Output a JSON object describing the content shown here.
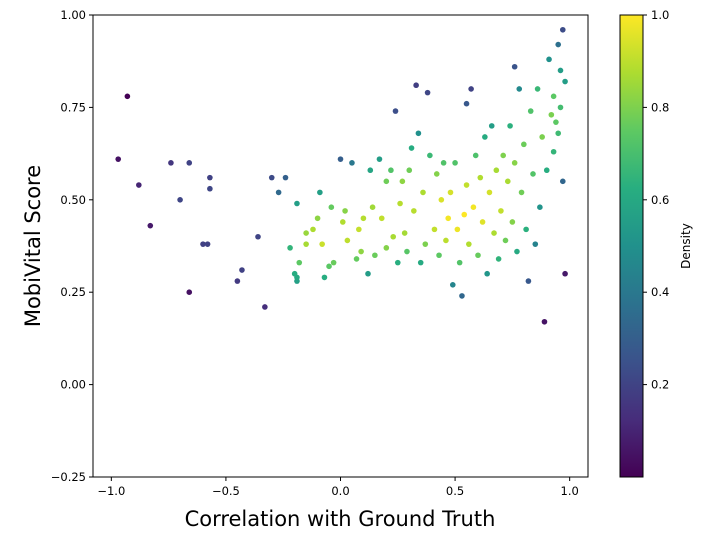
{
  "chart_data": {
    "type": "scatter",
    "title": "",
    "xlabel": "Correlation with Ground Truth",
    "ylabel": "MobiVital Score",
    "xlim": [
      -1.08,
      1.08
    ],
    "ylim": [
      -0.25,
      1.0
    ],
    "xticks": [
      -1.0,
      -0.5,
      0.0,
      0.5,
      1.0
    ],
    "xtick_labels": [
      "−1.0",
      "−0.5",
      "0.0",
      "0.5",
      "1.0"
    ],
    "yticks": [
      -0.25,
      0.0,
      0.25,
      0.5,
      0.75,
      1.0
    ],
    "ytick_labels": [
      "−0.25",
      "0.00",
      "0.25",
      "0.50",
      "0.75",
      "1.00"
    ],
    "grid": false,
    "colormap": "viridis",
    "colorbar": {
      "label": "Density",
      "range": [
        0.0,
        1.0
      ],
      "ticks": [
        0.2,
        0.4,
        0.6,
        0.8,
        1.0
      ],
      "tick_labels": [
        "0.2",
        "0.4",
        "0.6",
        "0.8",
        "1.0"
      ]
    },
    "points": [
      [
        -0.97,
        0.61
      ],
      [
        -0.93,
        0.78
      ],
      [
        -0.88,
        0.54
      ],
      [
        -0.83,
        0.43
      ],
      [
        -0.74,
        0.6
      ],
      [
        -0.7,
        0.5
      ],
      [
        -0.66,
        0.6
      ],
      [
        -0.66,
        0.25
      ],
      [
        -0.6,
        0.38
      ],
      [
        -0.58,
        0.38
      ],
      [
        -0.57,
        0.56
      ],
      [
        -0.57,
        0.53
      ],
      [
        -0.45,
        0.28
      ],
      [
        -0.43,
        0.31
      ],
      [
        -0.36,
        0.4
      ],
      [
        -0.33,
        0.21
      ],
      [
        -0.3,
        0.56
      ],
      [
        -0.27,
        0.52
      ],
      [
        -0.24,
        0.56
      ],
      [
        -0.22,
        0.37
      ],
      [
        -0.2,
        0.3
      ],
      [
        -0.19,
        0.29
      ],
      [
        -0.19,
        0.28
      ],
      [
        -0.18,
        0.33
      ],
      [
        -0.15,
        0.38
      ],
      [
        -0.19,
        0.49
      ],
      [
        -0.15,
        0.41
      ],
      [
        -0.12,
        0.42
      ],
      [
        -0.1,
        0.45
      ],
      [
        -0.09,
        0.52
      ],
      [
        -0.08,
        0.38
      ],
      [
        -0.07,
        0.29
      ],
      [
        -0.05,
        0.32
      ],
      [
        -0.04,
        0.48
      ],
      [
        -0.03,
        0.33
      ],
      [
        0.0,
        0.61
      ],
      [
        0.01,
        0.44
      ],
      [
        0.02,
        0.47
      ],
      [
        0.03,
        0.39
      ],
      [
        0.05,
        0.6
      ],
      [
        0.07,
        0.34
      ],
      [
        0.08,
        0.42
      ],
      [
        0.09,
        0.36
      ],
      [
        0.1,
        0.45
      ],
      [
        0.12,
        0.3
      ],
      [
        0.13,
        0.58
      ],
      [
        0.14,
        0.48
      ],
      [
        0.15,
        0.35
      ],
      [
        0.17,
        0.61
      ],
      [
        0.18,
        0.45
      ],
      [
        0.2,
        0.55
      ],
      [
        0.2,
        0.37
      ],
      [
        0.22,
        0.58
      ],
      [
        0.23,
        0.4
      ],
      [
        0.24,
        0.74
      ],
      [
        0.25,
        0.33
      ],
      [
        0.26,
        0.49
      ],
      [
        0.27,
        0.55
      ],
      [
        0.28,
        0.41
      ],
      [
        0.29,
        0.36
      ],
      [
        0.3,
        0.58
      ],
      [
        0.31,
        0.64
      ],
      [
        0.32,
        0.47
      ],
      [
        0.33,
        0.81
      ],
      [
        0.34,
        0.68
      ],
      [
        0.35,
        0.33
      ],
      [
        0.36,
        0.52
      ],
      [
        0.37,
        0.38
      ],
      [
        0.38,
        0.79
      ],
      [
        0.39,
        0.62
      ],
      [
        0.41,
        0.42
      ],
      [
        0.42,
        0.57
      ],
      [
        0.43,
        0.35
      ],
      [
        0.44,
        0.5
      ],
      [
        0.45,
        0.6
      ],
      [
        0.46,
        0.39
      ],
      [
        0.47,
        0.45
      ],
      [
        0.48,
        0.52
      ],
      [
        0.49,
        0.27
      ],
      [
        0.5,
        0.6
      ],
      [
        0.51,
        0.42
      ],
      [
        0.52,
        0.33
      ],
      [
        0.53,
        0.24
      ],
      [
        0.54,
        0.46
      ],
      [
        0.55,
        0.54
      ],
      [
        0.55,
        0.76
      ],
      [
        0.56,
        0.38
      ],
      [
        0.57,
        0.8
      ],
      [
        0.58,
        0.48
      ],
      [
        0.59,
        0.62
      ],
      [
        0.6,
        0.35
      ],
      [
        0.61,
        0.56
      ],
      [
        0.62,
        0.44
      ],
      [
        0.63,
        0.67
      ],
      [
        0.64,
        0.3
      ],
      [
        0.65,
        0.52
      ],
      [
        0.66,
        0.7
      ],
      [
        0.67,
        0.41
      ],
      [
        0.68,
        0.58
      ],
      [
        0.69,
        0.34
      ],
      [
        0.7,
        0.47
      ],
      [
        0.71,
        0.62
      ],
      [
        0.72,
        0.39
      ],
      [
        0.73,
        0.55
      ],
      [
        0.74,
        0.7
      ],
      [
        0.75,
        0.44
      ],
      [
        0.76,
        0.86
      ],
      [
        0.76,
        0.6
      ],
      [
        0.77,
        0.36
      ],
      [
        0.78,
        0.8
      ],
      [
        0.79,
        0.52
      ],
      [
        0.8,
        0.65
      ],
      [
        0.81,
        0.42
      ],
      [
        0.82,
        0.28
      ],
      [
        0.83,
        0.74
      ],
      [
        0.84,
        0.57
      ],
      [
        0.85,
        0.38
      ],
      [
        0.86,
        0.8
      ],
      [
        0.87,
        0.48
      ],
      [
        0.88,
        0.67
      ],
      [
        0.89,
        0.17
      ],
      [
        0.9,
        0.58
      ],
      [
        0.91,
        0.88
      ],
      [
        0.92,
        0.73
      ],
      [
        0.93,
        0.63
      ],
      [
        0.93,
        0.78
      ],
      [
        0.94,
        0.71
      ],
      [
        0.95,
        0.92
      ],
      [
        0.95,
        0.68
      ],
      [
        0.96,
        0.85
      ],
      [
        0.96,
        0.75
      ],
      [
        0.97,
        0.96
      ],
      [
        0.97,
        0.55
      ],
      [
        0.98,
        0.82
      ],
      [
        0.98,
        0.3
      ]
    ]
  }
}
